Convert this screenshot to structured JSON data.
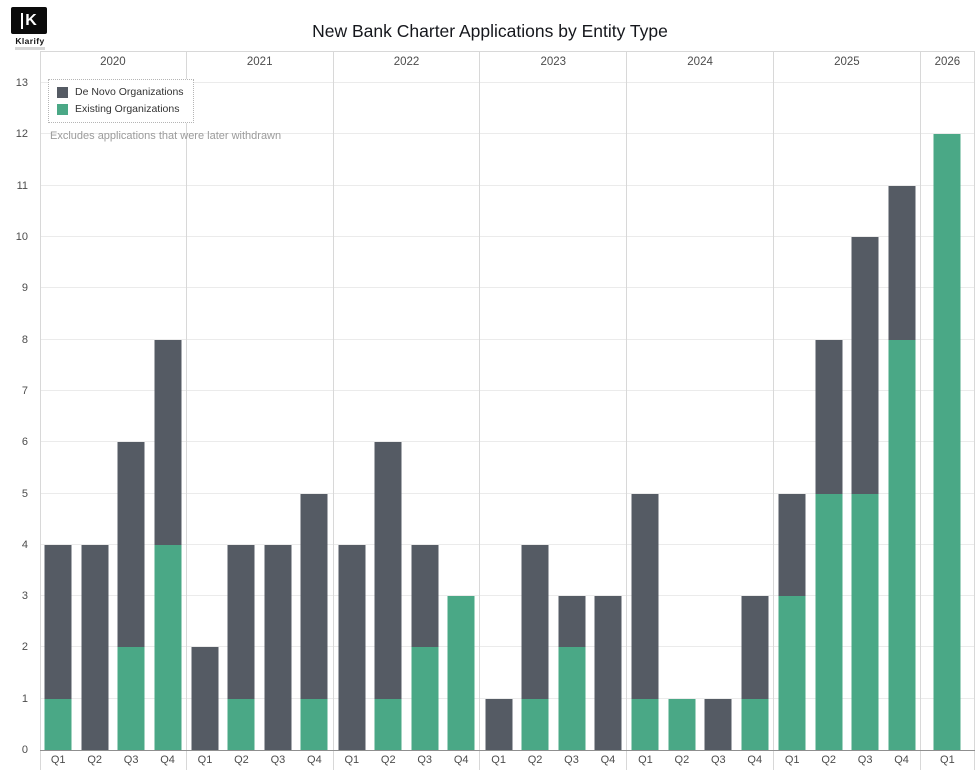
{
  "logo": {
    "mark": "K",
    "brand": "Klarify"
  },
  "title": "New Bank Charter Applications by Entity Type",
  "note": "Excludes applications that were later withdrawn",
  "chart_data": {
    "type": "bar",
    "stacked": true,
    "title": "New Bank Charter Applications by Entity Type",
    "xlabel": "",
    "ylabel": "",
    "ylim": [
      0,
      13
    ],
    "yticks": [
      0,
      1,
      2,
      3,
      4,
      5,
      6,
      7,
      8,
      9,
      10,
      11,
      12,
      13
    ],
    "grid": true,
    "legend_position": "top-left",
    "stack_order": [
      "existing",
      "de_novo"
    ],
    "series": [
      {
        "name": "De Novo Organizations",
        "key": "de_novo",
        "color": "#555b64"
      },
      {
        "name": "Existing Organizations",
        "key": "existing",
        "color": "#4aa886"
      }
    ],
    "groups": [
      {
        "year": "2020",
        "quarters": [
          "Q1",
          "Q2",
          "Q3",
          "Q4"
        ],
        "existing": [
          1,
          0,
          2,
          4
        ],
        "de_novo": [
          3,
          4,
          4,
          4
        ]
      },
      {
        "year": "2021",
        "quarters": [
          "Q1",
          "Q2",
          "Q3",
          "Q4"
        ],
        "existing": [
          0,
          1,
          0,
          1
        ],
        "de_novo": [
          2,
          3,
          4,
          4
        ]
      },
      {
        "year": "2022",
        "quarters": [
          "Q1",
          "Q2",
          "Q3",
          "Q4"
        ],
        "existing": [
          0,
          1,
          2,
          3
        ],
        "de_novo": [
          4,
          5,
          2,
          0
        ]
      },
      {
        "year": "2023",
        "quarters": [
          "Q1",
          "Q2",
          "Q3",
          "Q4"
        ],
        "existing": [
          0,
          1,
          2,
          0
        ],
        "de_novo": [
          1,
          3,
          1,
          3
        ]
      },
      {
        "year": "2024",
        "quarters": [
          "Q1",
          "Q2",
          "Q3",
          "Q4"
        ],
        "existing": [
          1,
          1,
          0,
          1
        ],
        "de_novo": [
          4,
          0,
          1,
          2
        ]
      },
      {
        "year": "2025",
        "quarters": [
          "Q1",
          "Q2",
          "Q3",
          "Q4"
        ],
        "existing": [
          3,
          5,
          5,
          8
        ],
        "de_novo": [
          2,
          3,
          5,
          3
        ]
      },
      {
        "year": "2026",
        "quarters": [
          "Q1"
        ],
        "existing": [
          12
        ],
        "de_novo": [
          0
        ]
      }
    ]
  }
}
